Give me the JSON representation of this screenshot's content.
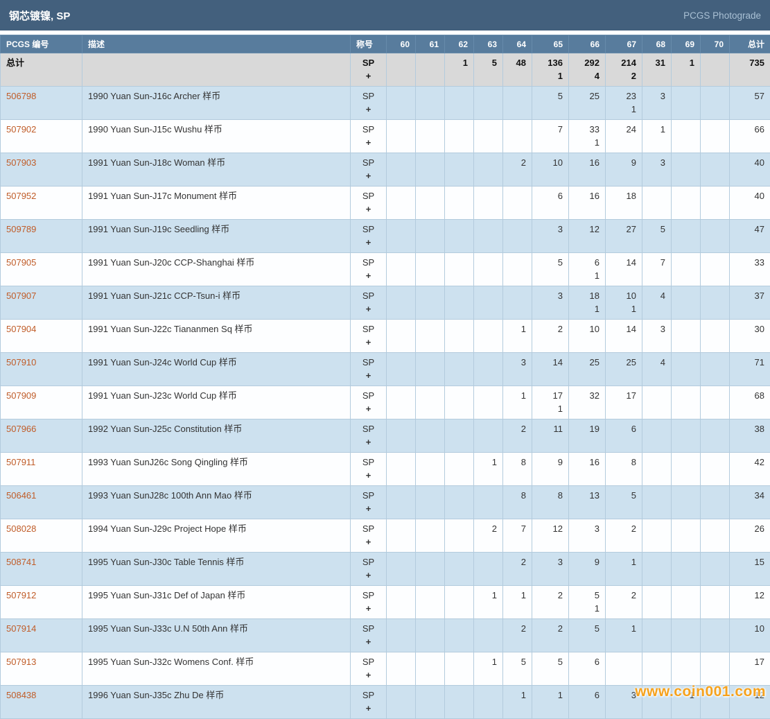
{
  "title_bar": {
    "title": "钢芯镀镍, SP",
    "right_link": "PCGS Photograde"
  },
  "table": {
    "columns": [
      "PCGS 编号",
      "描述",
      "称号",
      "60",
      "61",
      "62",
      "63",
      "64",
      "65",
      "66",
      "67",
      "68",
      "69",
      "70",
      "总计"
    ],
    "grade_columns": [
      "60",
      "61",
      "62",
      "63",
      "64",
      "65",
      "66",
      "67",
      "68",
      "69",
      "70"
    ],
    "designation": {
      "top": "SP",
      "plus": "+"
    },
    "total_row": {
      "label": "总计",
      "grades": [
        "",
        "",
        "1",
        "5",
        "48",
        [
          "136",
          "1"
        ],
        [
          "292",
          "4"
        ],
        [
          "214",
          "2"
        ],
        "31",
        "1",
        ""
      ],
      "total": "735"
    },
    "rows": [
      {
        "pcgs": "506798",
        "desc": "1990 Yuan Sun-J16c Archer 样币",
        "grades": [
          "",
          "",
          "",
          "",
          "",
          "5",
          "25",
          [
            "23",
            "1"
          ],
          "3",
          "",
          ""
        ],
        "total": "57"
      },
      {
        "pcgs": "507902",
        "desc": "1990 Yuan Sun-J15c Wushu 样币",
        "grades": [
          "",
          "",
          "",
          "",
          "",
          "7",
          [
            "33",
            "1"
          ],
          "24",
          "1",
          "",
          ""
        ],
        "total": "66"
      },
      {
        "pcgs": "507903",
        "desc": "1991 Yuan Sun-J18c Woman 样币",
        "grades": [
          "",
          "",
          "",
          "",
          "2",
          "10",
          "16",
          "9",
          "3",
          "",
          ""
        ],
        "total": "40"
      },
      {
        "pcgs": "507952",
        "desc": "1991 Yuan Sun-J17c Monument 样币",
        "grades": [
          "",
          "",
          "",
          "",
          "",
          "6",
          "16",
          "18",
          "",
          "",
          ""
        ],
        "total": "40"
      },
      {
        "pcgs": "509789",
        "desc": "1991 Yuan Sun-J19c Seedling 样币",
        "grades": [
          "",
          "",
          "",
          "",
          "",
          "3",
          "12",
          "27",
          "5",
          "",
          ""
        ],
        "total": "47"
      },
      {
        "pcgs": "507905",
        "desc": "1991 Yuan Sun-J20c CCP-Shanghai 样币",
        "grades": [
          "",
          "",
          "",
          "",
          "",
          "5",
          [
            "6",
            "1"
          ],
          "14",
          "7",
          "",
          ""
        ],
        "total": "33"
      },
      {
        "pcgs": "507907",
        "desc": "1991 Yuan Sun-J21c CCP-Tsun-i 样币",
        "grades": [
          "",
          "",
          "",
          "",
          "",
          "3",
          [
            "18",
            "1"
          ],
          [
            "10",
            "1"
          ],
          "4",
          "",
          ""
        ],
        "total": "37"
      },
      {
        "pcgs": "507904",
        "desc": "1991 Yuan Sun-J22c Tiananmen Sq 样币",
        "grades": [
          "",
          "",
          "",
          "",
          "1",
          "2",
          "10",
          "14",
          "3",
          "",
          ""
        ],
        "total": "30"
      },
      {
        "pcgs": "507910",
        "desc": "1991 Yuan Sun-J24c World Cup 样币",
        "grades": [
          "",
          "",
          "",
          "",
          "3",
          "14",
          "25",
          "25",
          "4",
          "",
          ""
        ],
        "total": "71"
      },
      {
        "pcgs": "507909",
        "desc": "1991 Yuan Sun-J23c World Cup 样币",
        "grades": [
          "",
          "",
          "",
          "",
          "1",
          [
            "17",
            "1"
          ],
          "32",
          "17",
          "",
          "",
          ""
        ],
        "total": "68"
      },
      {
        "pcgs": "507966",
        "desc": "1992 Yuan Sun-J25c Constitution 样币",
        "grades": [
          "",
          "",
          "",
          "",
          "2",
          "11",
          "19",
          "6",
          "",
          "",
          ""
        ],
        "total": "38"
      },
      {
        "pcgs": "507911",
        "desc": "1993 Yuan SunJ26c Song Qingling 样币",
        "grades": [
          "",
          "",
          "",
          "1",
          "8",
          "9",
          "16",
          "8",
          "",
          "",
          ""
        ],
        "total": "42"
      },
      {
        "pcgs": "506461",
        "desc": "1993 Yuan SunJ28c 100th Ann Mao 样币",
        "grades": [
          "",
          "",
          "",
          "",
          "8",
          "8",
          "13",
          "5",
          "",
          "",
          ""
        ],
        "total": "34"
      },
      {
        "pcgs": "508028",
        "desc": "1994 Yuan Sun-J29c Project Hope 样币",
        "grades": [
          "",
          "",
          "",
          "2",
          "7",
          "12",
          "3",
          "2",
          "",
          "",
          ""
        ],
        "total": "26"
      },
      {
        "pcgs": "508741",
        "desc": "1995 Yuan Sun-J30c Table Tennis 样币",
        "grades": [
          "",
          "",
          "",
          "",
          "2",
          "3",
          "9",
          "1",
          "",
          "",
          ""
        ],
        "total": "15"
      },
      {
        "pcgs": "507912",
        "desc": "1995 Yuan Sun-J31c Def of Japan 样币",
        "grades": [
          "",
          "",
          "",
          "1",
          "1",
          "2",
          [
            "5",
            "1"
          ],
          "2",
          "",
          "",
          ""
        ],
        "total": "12"
      },
      {
        "pcgs": "507914",
        "desc": "1995 Yuan Sun-J33c U.N 50th Ann 样币",
        "grades": [
          "",
          "",
          "",
          "",
          "2",
          "2",
          "5",
          "1",
          "",
          "",
          ""
        ],
        "total": "10"
      },
      {
        "pcgs": "507913",
        "desc": "1995 Yuan Sun-J32c Womens Conf. 样币",
        "grades": [
          "",
          "",
          "",
          "1",
          "5",
          "5",
          "6",
          "",
          "",
          "",
          ""
        ],
        "total": "17"
      },
      {
        "pcgs": "508438",
        "desc": "1996 Yuan Sun-J35c Zhu De 样币",
        "grades": [
          "",
          "",
          "",
          "",
          "1",
          "1",
          "6",
          "3",
          "",
          "1",
          ""
        ],
        "total": "12"
      }
    ]
  },
  "watermark": "www.coin001.com"
}
